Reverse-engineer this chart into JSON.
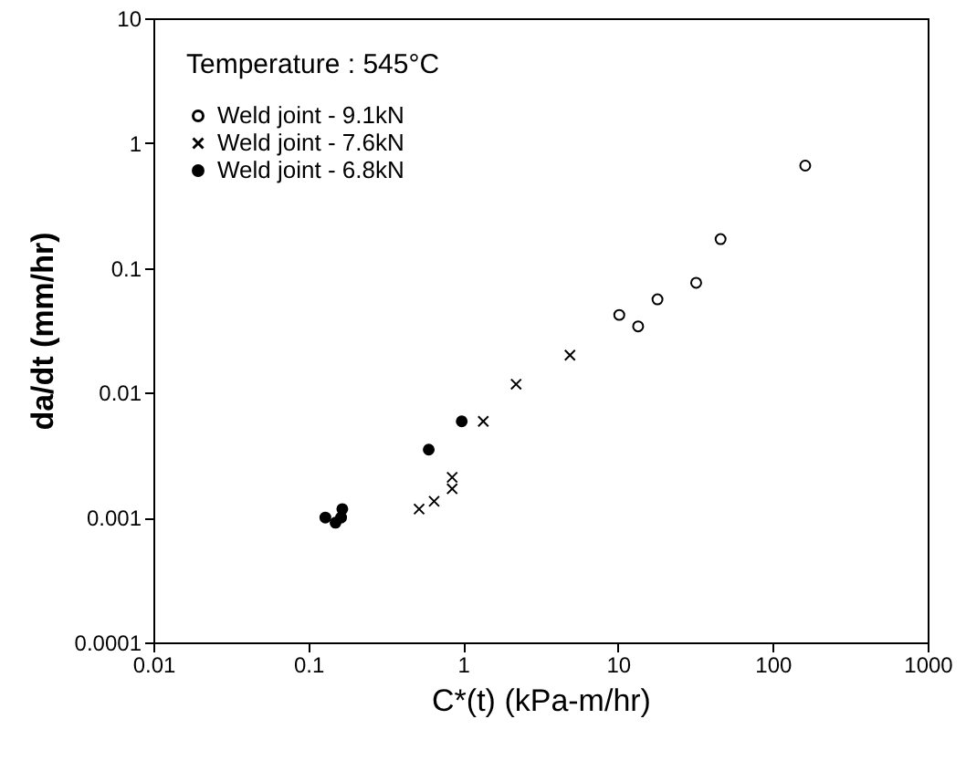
{
  "chart_data": {
    "type": "scatter",
    "xlabel": "C*(t) (kPa-m/hr)",
    "ylabel": "da/dt (mm/hr)",
    "legend_title": "Temperature : 545°C",
    "legend": "top left",
    "log": "xy",
    "grid": false,
    "xlim": [
      0.01,
      1000
    ],
    "xticks": [
      0.01,
      0.1,
      1,
      10,
      100,
      1000
    ],
    "ylim": [
      0.0001,
      10
    ],
    "yticks": [
      0.0001,
      0.001,
      0.01,
      0.1,
      1,
      10
    ],
    "series": [
      {
        "name": "Weld joint - 9.1kN",
        "color": "#000000",
        "marker": "circle",
        "x": [
          162,
          46,
          32,
          18,
          10.2,
          13.5
        ],
        "values": [
          0.66,
          0.17,
          0.076,
          0.056,
          0.042,
          0.034
        ]
      },
      {
        "name": "Weld joint - 7.6kN",
        "color": "#000000",
        "marker": "cross",
        "x": [
          4.9,
          2.2,
          1.35,
          0.85,
          0.85,
          0.65,
          0.52
        ],
        "values": [
          0.02,
          0.0117,
          0.0059,
          0.0021,
          0.0017,
          0.00135,
          0.00117
        ]
      },
      {
        "name": "Weld joint - 6.8kN",
        "color": "#000000",
        "marker": "circle",
        "x": [
          0.98,
          0.6,
          0.166,
          0.129,
          0.163,
          0.15
        ],
        "values": [
          0.0059,
          0.0035,
          0.00117,
          0.001,
          0.001,
          0.00091
        ]
      }
    ]
  }
}
